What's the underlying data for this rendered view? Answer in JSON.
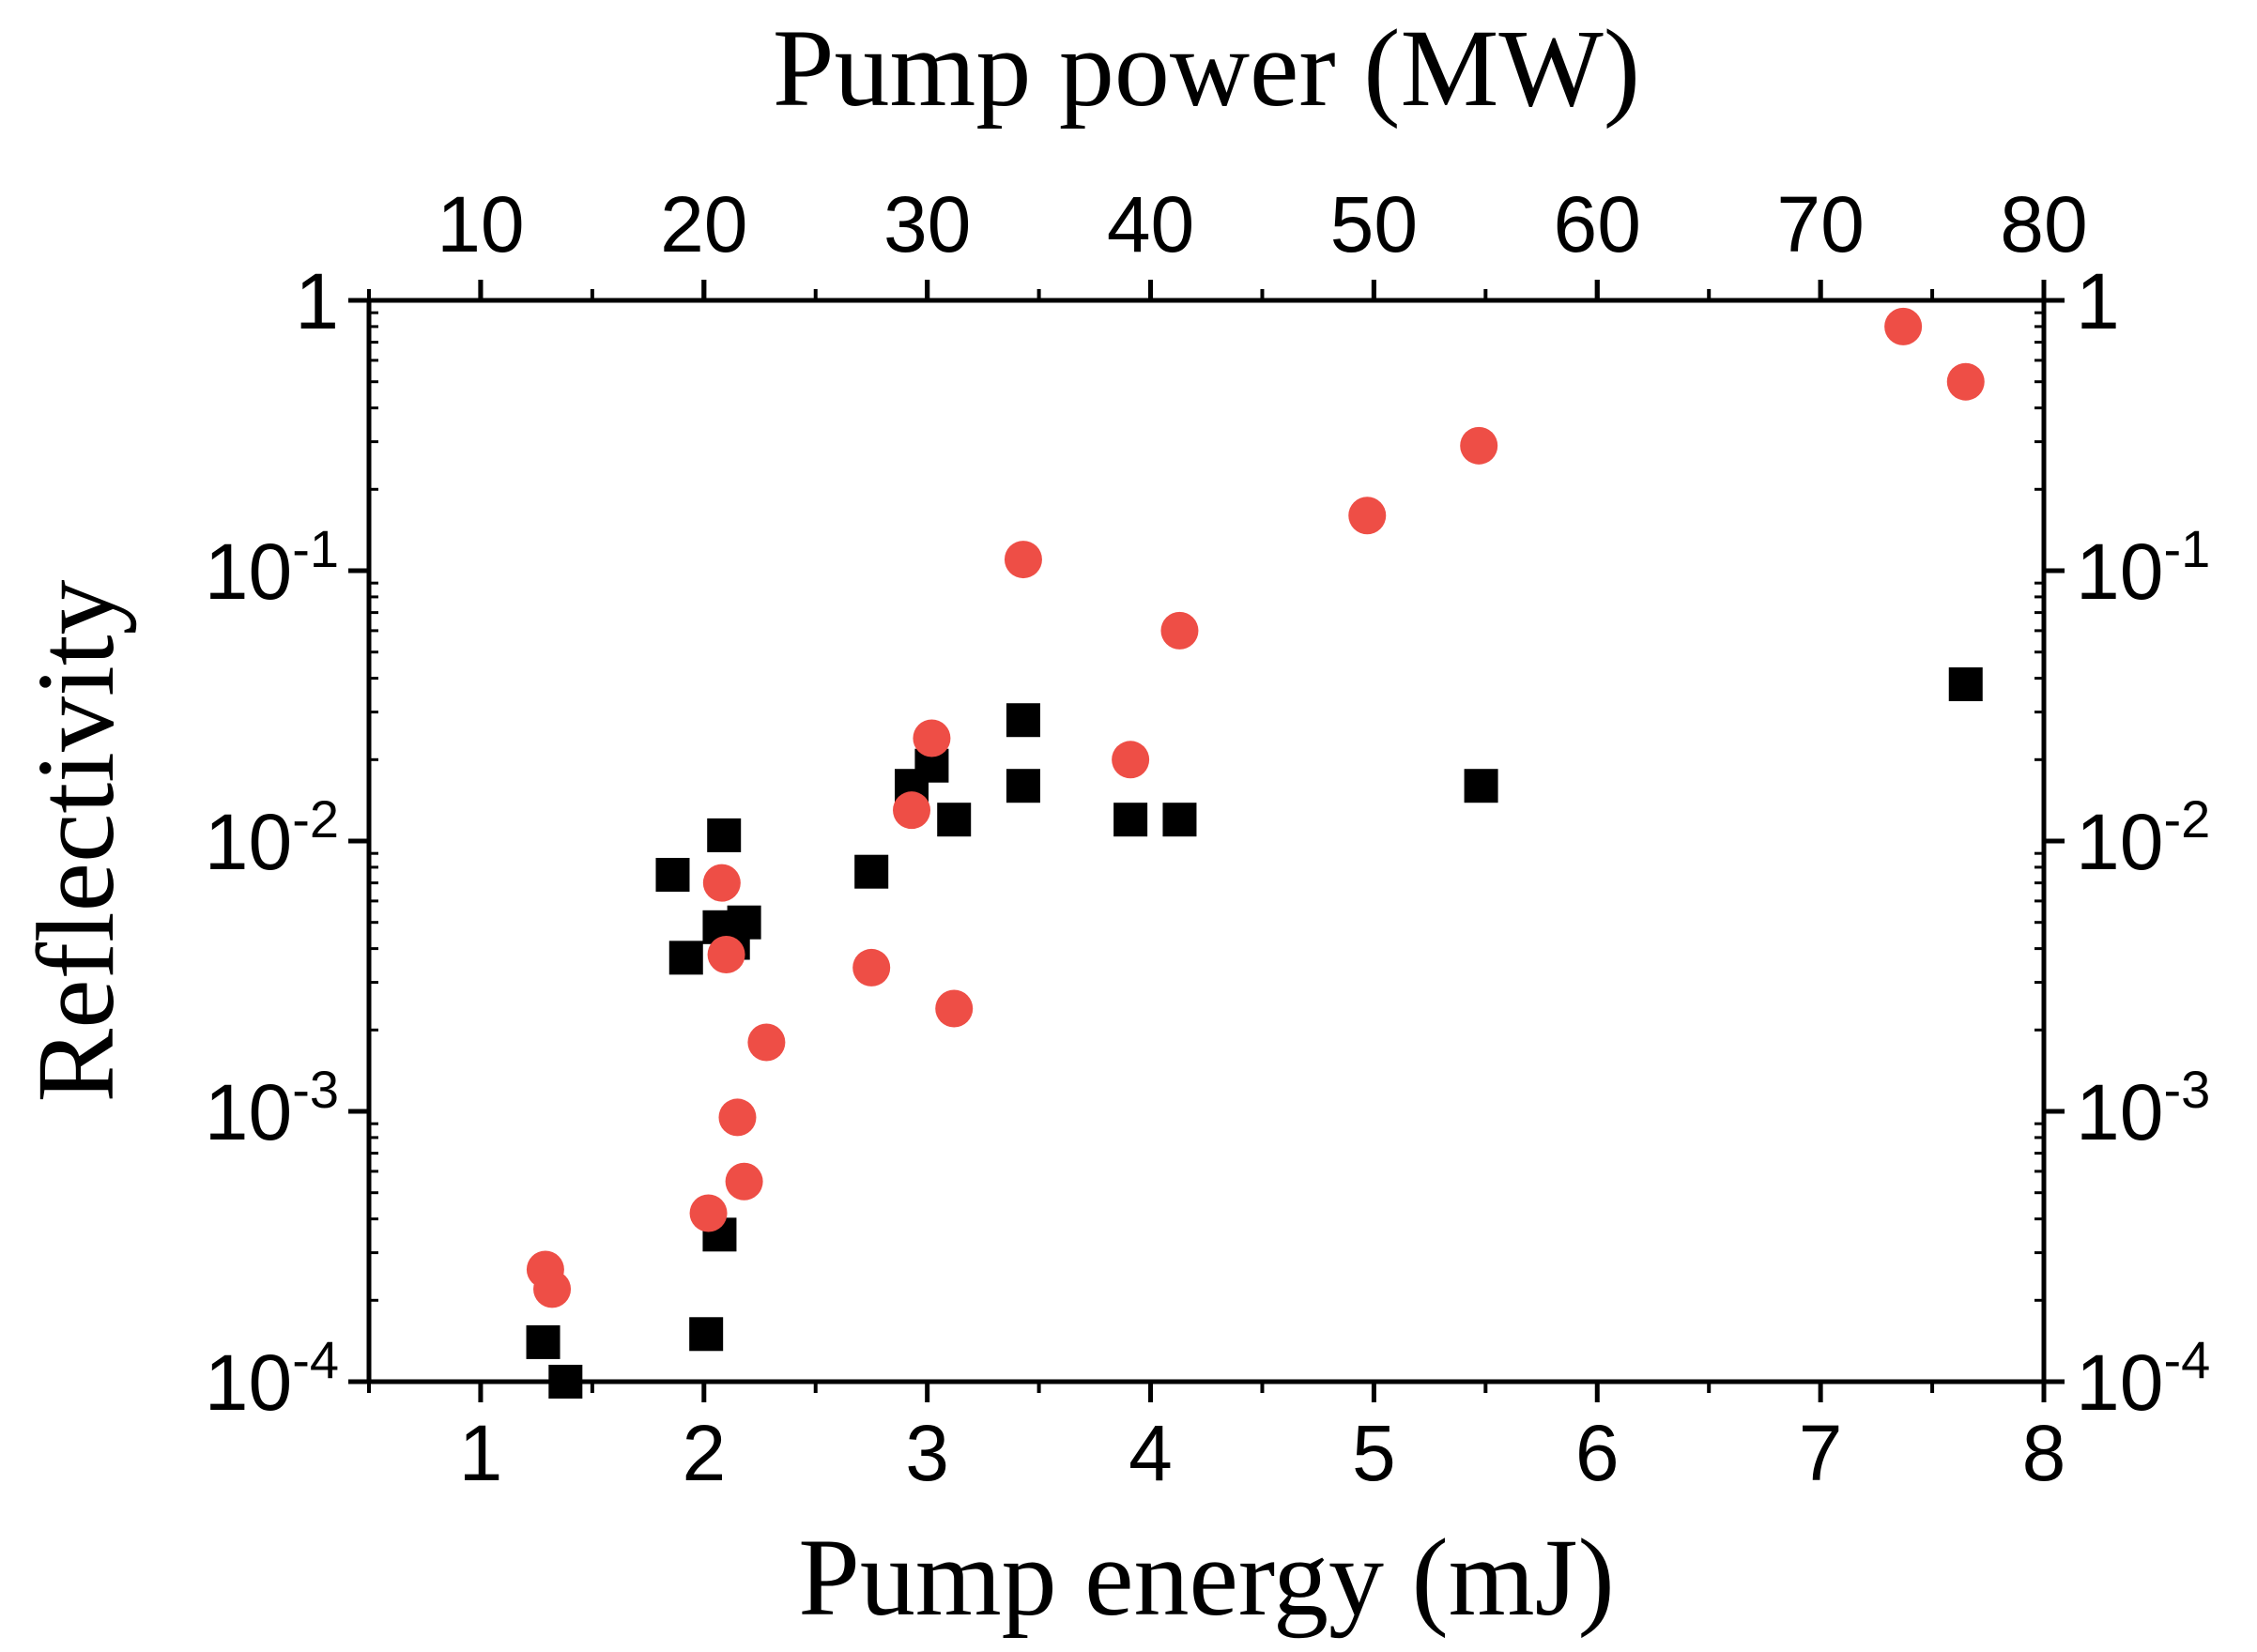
{
  "chart_data": {
    "type": "scatter",
    "title": "",
    "xlabel": "Pump energy (mJ)",
    "x2label": "Pump power (MW)",
    "ylabel": "Reflectivity",
    "xlim": [
      0.5,
      8
    ],
    "x2lim": [
      5,
      80
    ],
    "yscale": "log",
    "ylim": [
      0.0001,
      1
    ],
    "grid": false,
    "x_ticks": [
      "1",
      "2",
      "3",
      "4",
      "5",
      "6",
      "7",
      "8"
    ],
    "x2_ticks": [
      "10",
      "20",
      "30",
      "40",
      "50",
      "60",
      "70",
      "80"
    ],
    "y_ticks": [
      {
        "value": 1,
        "base": "1",
        "exp": ""
      },
      {
        "value": 0.1,
        "base": "10",
        "exp": "-1"
      },
      {
        "value": 0.01,
        "base": "10",
        "exp": "-2"
      },
      {
        "value": 0.001,
        "base": "10",
        "exp": "-3"
      },
      {
        "value": 0.0001,
        "base": "10",
        "exp": "-4"
      }
    ],
    "series": [
      {
        "name": "black squares",
        "marker": "square",
        "color": "#000000",
        "points": [
          [
            1.28,
            0.00014
          ],
          [
            1.38,
            0.0001
          ],
          [
            1.86,
            0.0075
          ],
          [
            1.92,
            0.0037
          ],
          [
            2.01,
            0.00015
          ],
          [
            2.07,
            0.00035
          ],
          [
            2.07,
            0.0048
          ],
          [
            2.09,
            0.0105
          ],
          [
            2.13,
            0.0042
          ],
          [
            2.18,
            0.005
          ],
          [
            2.75,
            0.0077
          ],
          [
            2.93,
            0.016
          ],
          [
            3.02,
            0.019
          ],
          [
            3.12,
            0.012
          ],
          [
            3.43,
            0.028
          ],
          [
            3.43,
            0.016
          ],
          [
            3.91,
            0.012
          ],
          [
            4.13,
            0.012
          ],
          [
            5.48,
            0.016
          ],
          [
            7.65,
            0.038
          ]
        ]
      },
      {
        "name": "red circles",
        "marker": "circle",
        "color": "#ee4e46",
        "points": [
          [
            1.29,
            0.00026
          ],
          [
            1.32,
            0.00022
          ],
          [
            2.02,
            0.00042
          ],
          [
            2.08,
            0.007
          ],
          [
            2.1,
            0.0038
          ],
          [
            2.15,
            0.00095
          ],
          [
            2.18,
            0.00055
          ],
          [
            2.28,
            0.0018
          ],
          [
            2.75,
            0.0034
          ],
          [
            2.93,
            0.013
          ],
          [
            3.02,
            0.024
          ],
          [
            3.12,
            0.0024
          ],
          [
            3.43,
            0.11
          ],
          [
            3.91,
            0.02
          ],
          [
            4.13,
            0.06
          ],
          [
            4.97,
            0.16
          ],
          [
            5.47,
            0.29
          ],
          [
            7.37,
            0.8
          ],
          [
            7.65,
            0.5
          ]
        ]
      }
    ]
  }
}
